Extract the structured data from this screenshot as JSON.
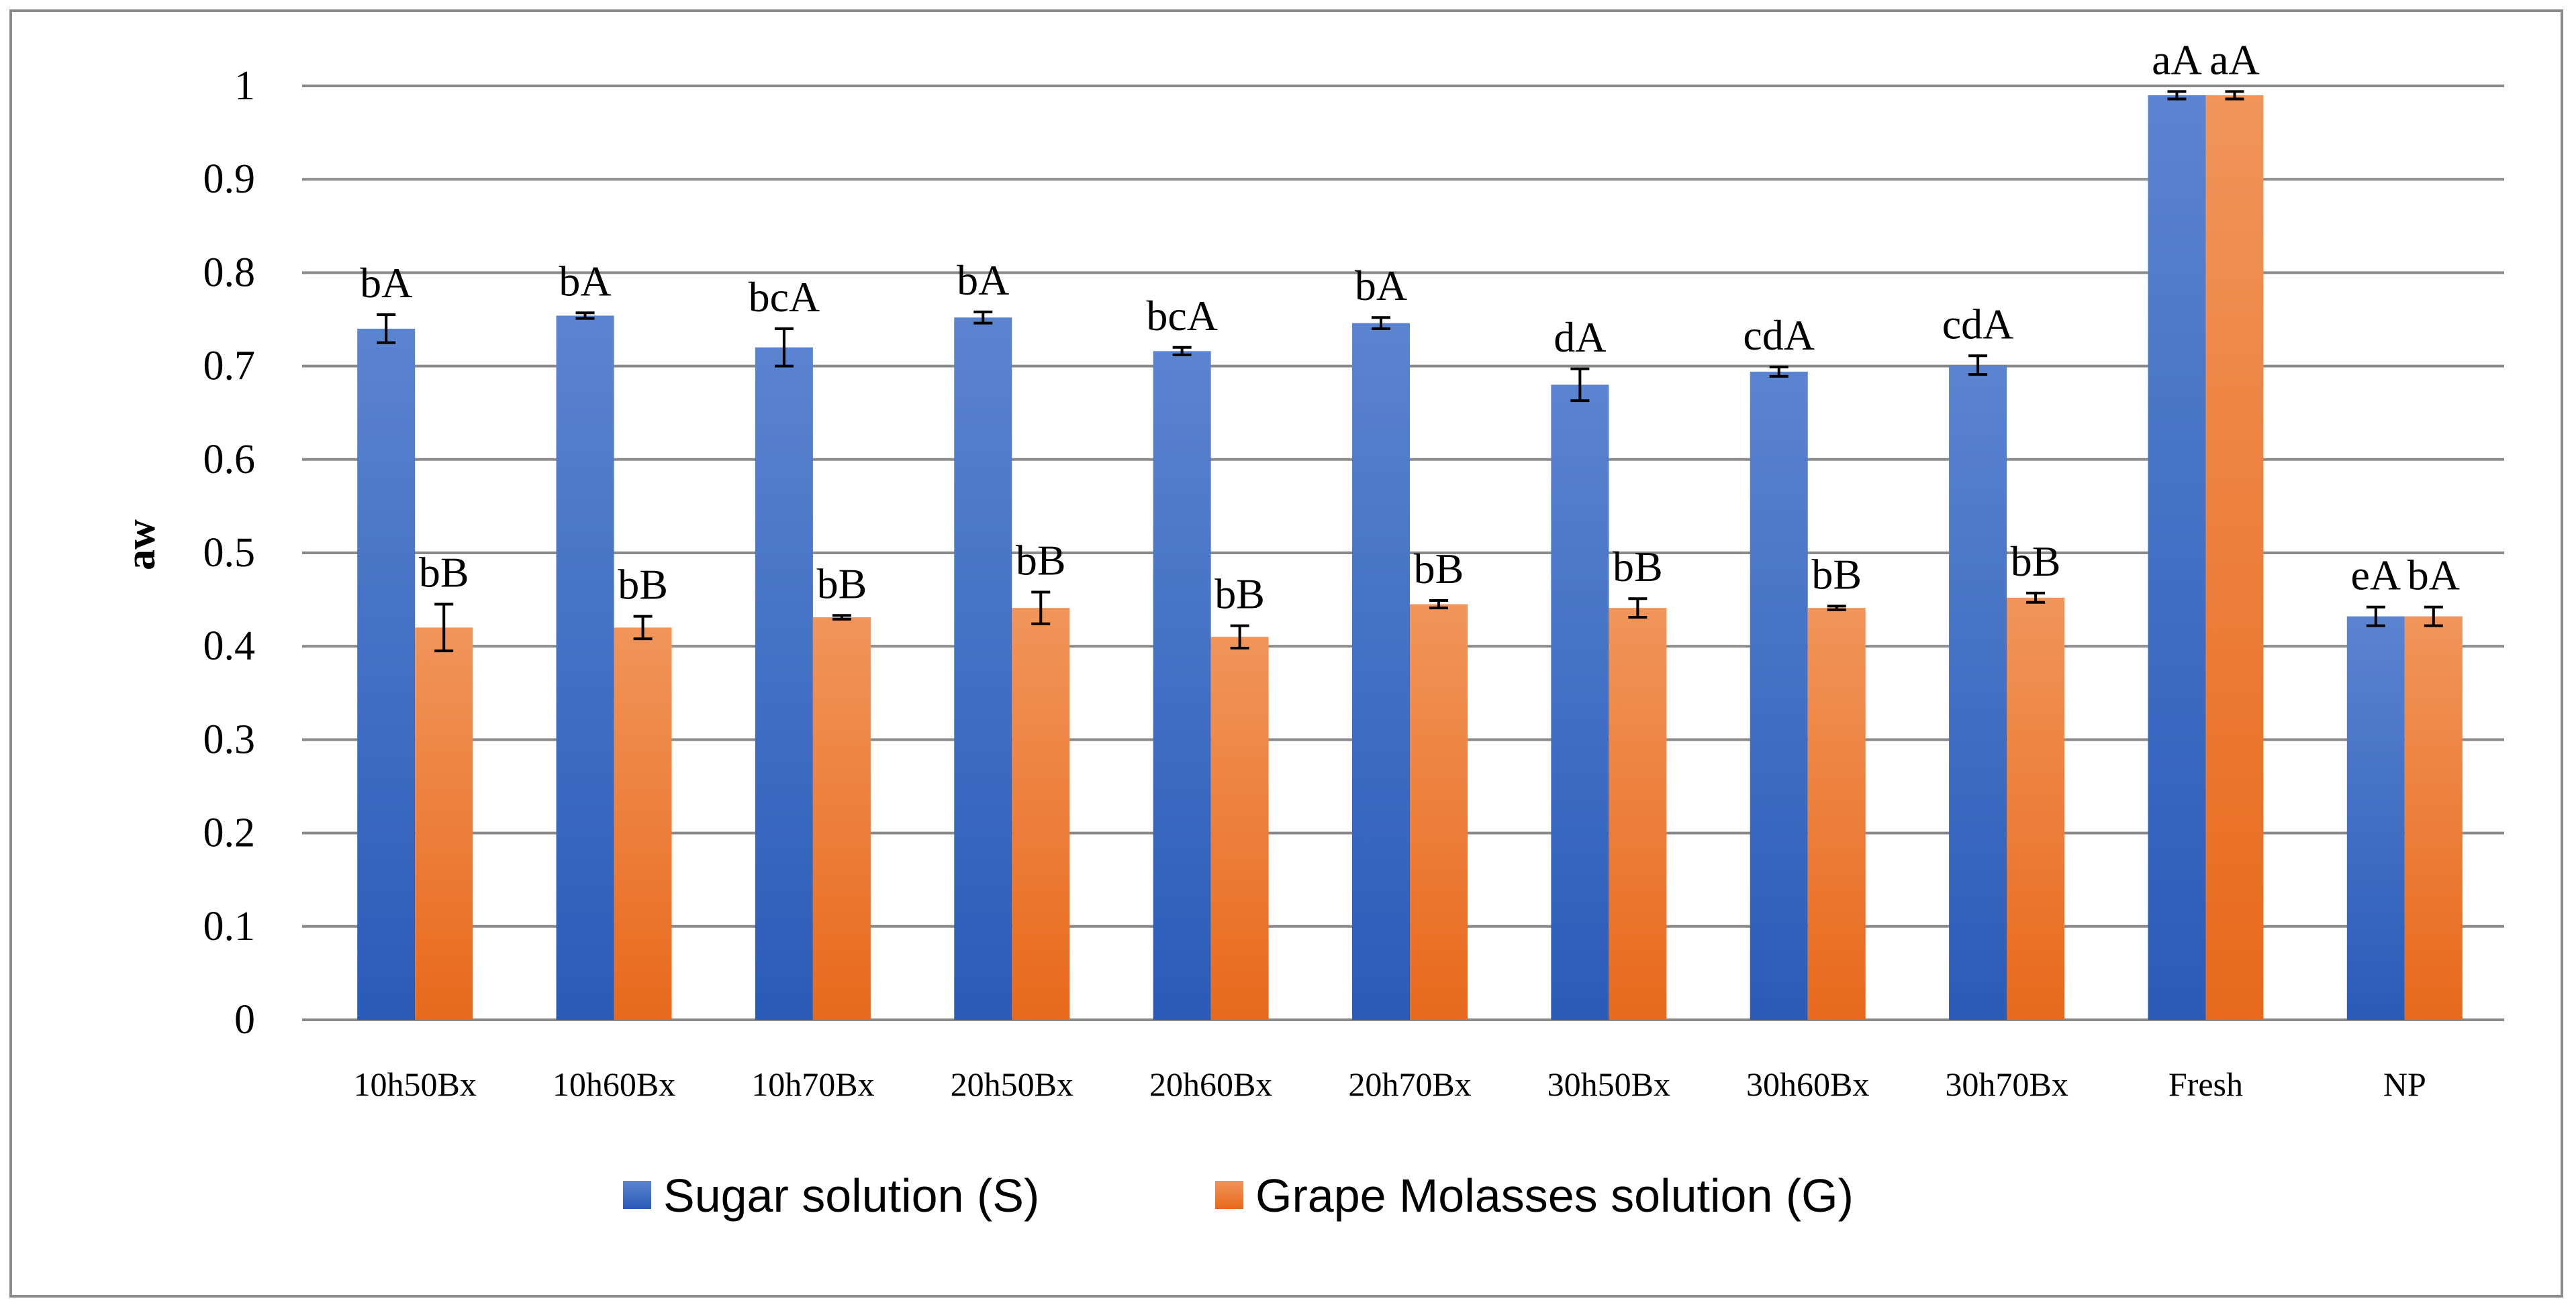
{
  "chart_data": {
    "type": "bar",
    "title": "",
    "xlabel": "",
    "ylabel": "aw",
    "ylim": [
      0,
      1
    ],
    "yticks": [
      "0",
      "0.1",
      "0.2",
      "0.3",
      "0.4",
      "0.5",
      "0.6",
      "0.7",
      "0.8",
      "0.9",
      "1"
    ],
    "grid": true,
    "legend_position": "bottom",
    "categories": [
      "10h50Bx",
      "10h60Bx",
      "10h70Bx",
      "20h50Bx",
      "20h60Bx",
      "20h70Bx",
      "30h50Bx",
      "30h60Bx",
      "30h70Bx",
      "Fresh",
      "NP"
    ],
    "series": [
      {
        "name": "Sugar solution (S)",
        "color_top": "#5b84d0",
        "color_bottom": "#2a5bb8",
        "values": [
          0.74,
          0.754,
          0.72,
          0.752,
          0.716,
          0.746,
          0.68,
          0.694,
          0.701,
          0.99,
          0.432
        ],
        "errors": [
          0.015,
          0.003,
          0.02,
          0.006,
          0.004,
          0.006,
          0.017,
          0.005,
          0.01,
          0.004,
          0.01
        ],
        "labels": [
          "bA",
          "bA",
          "bcA",
          "bA",
          "bcA",
          "bA",
          "dA",
          "cdA",
          "cdA",
          "aA",
          "eA"
        ]
      },
      {
        "name": "Grape Molasses solution (G)",
        "color_top": "#f1955a",
        "color_bottom": "#e8691c",
        "values": [
          0.42,
          0.42,
          0.431,
          0.441,
          0.41,
          0.445,
          0.441,
          0.441,
          0.452,
          0.99,
          0.432
        ],
        "errors": [
          0.025,
          0.012,
          0.002,
          0.017,
          0.012,
          0.004,
          0.01,
          0.002,
          0.005,
          0.004,
          0.01
        ],
        "labels": [
          "bB",
          "bB",
          "bB",
          "bB",
          "bB",
          "bB",
          "bB",
          "bB",
          "bB",
          "aA",
          "bA"
        ]
      }
    ]
  }
}
